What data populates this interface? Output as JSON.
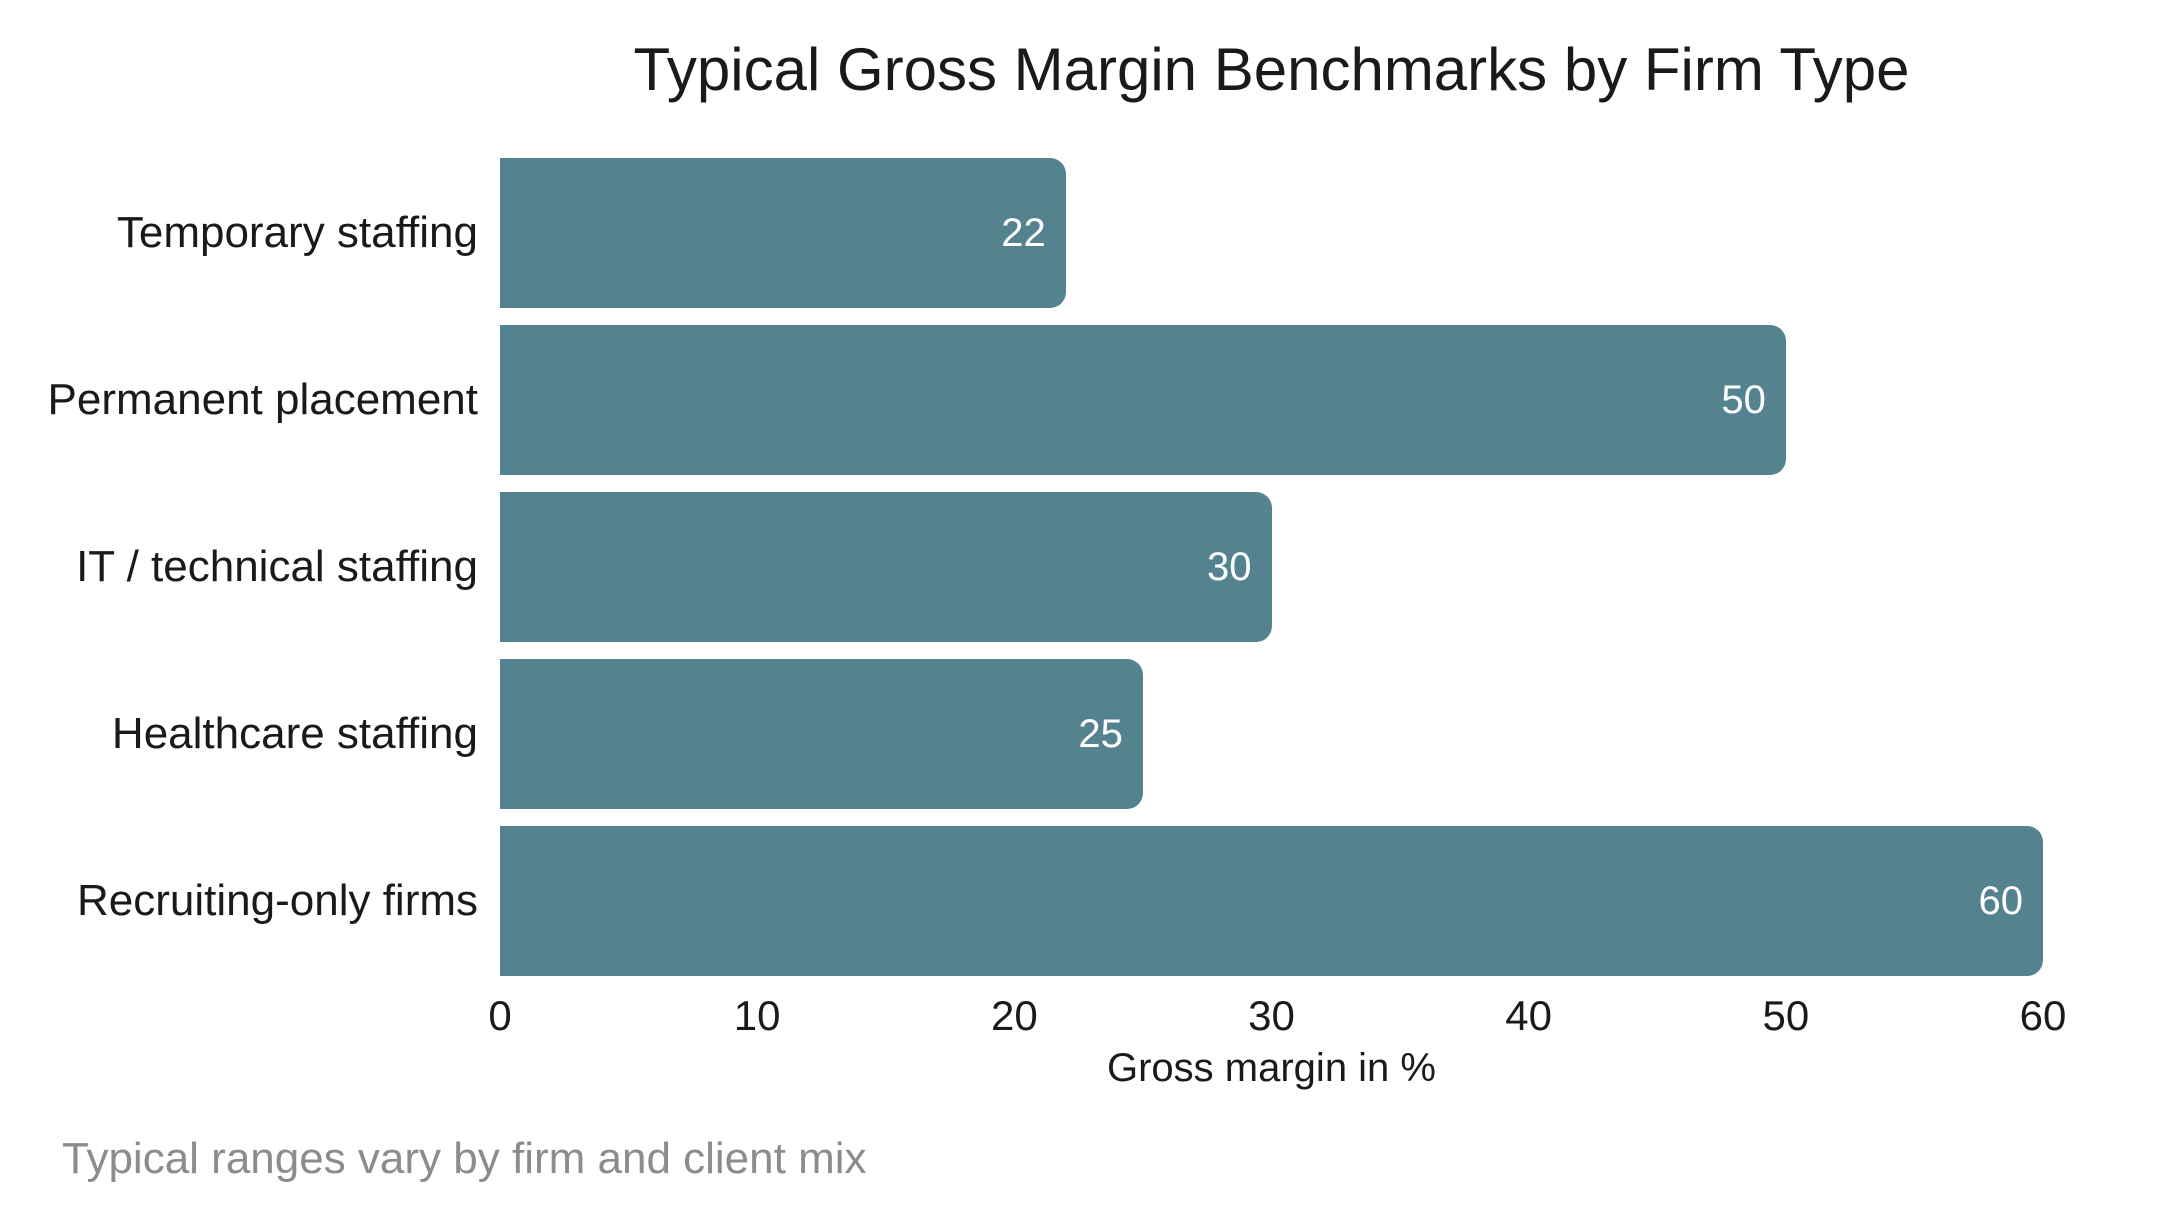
{
  "chart_data": {
    "type": "bar",
    "orientation": "horizontal",
    "title": "Typical Gross Margin Benchmarks by Firm Type",
    "categories": [
      "Temporary staffing",
      "Permanent placement",
      "IT / technical staffing",
      "Healthcare staffing",
      "Recruiting-only firms"
    ],
    "values": [
      22,
      50,
      30,
      25,
      60
    ],
    "xlabel": "Gross margin in %",
    "xlim": [
      0,
      60
    ],
    "xticks": [
      0,
      10,
      20,
      30,
      40,
      50,
      60
    ],
    "grid": false,
    "legend": null,
    "footnote": "Typical ranges vary by firm and client mix",
    "colors": {
      "bar": "#54838F",
      "value_label": "#FFFFFF",
      "text": "#1A1A1A",
      "footnote": "#8C8C8C",
      "background": "#FFFFFF"
    }
  }
}
